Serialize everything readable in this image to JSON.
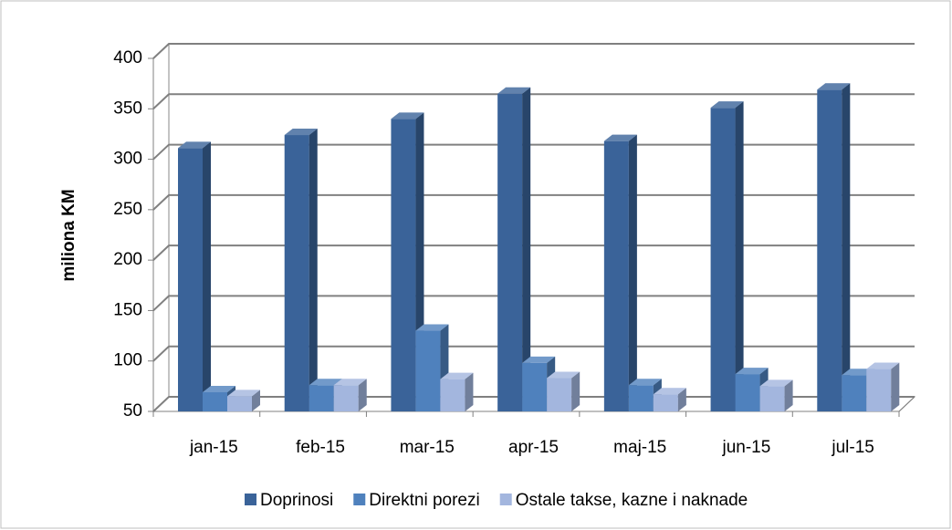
{
  "chart_data": {
    "type": "bar3d",
    "y_label": "miliona KM",
    "categories": [
      "jan-15",
      "feb-15",
      "mar-15",
      "apr-15",
      "maj-15",
      "jun-15",
      "jul-15"
    ],
    "series": [
      {
        "name": "Doprinosi",
        "color": "#3a6399",
        "values": [
          311,
          324,
          340,
          365,
          318,
          351,
          369
        ]
      },
      {
        "name": "Direktni porezi",
        "color": "#4f81bd",
        "values": [
          69,
          76,
          130,
          98,
          76,
          87,
          86
        ]
      },
      {
        "name": "Ostale takse, kazne i naknade",
        "color": "#a3b6de",
        "values": [
          65,
          76,
          82,
          83,
          67,
          75,
          92
        ]
      }
    ],
    "ylim": [
      50,
      400
    ],
    "yticks": [
      50,
      100,
      150,
      200,
      250,
      300,
      350,
      400
    ],
    "grid": true
  }
}
